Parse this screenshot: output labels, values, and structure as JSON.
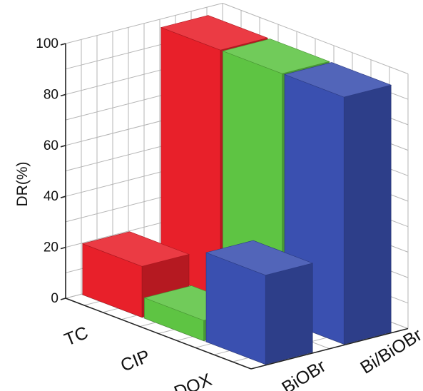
{
  "chart_data": {
    "type": "bar3d",
    "ylabel": "DR(%)",
    "ylim": [
      0,
      100
    ],
    "yticks": [
      "0",
      "20",
      "40",
      "60",
      "80",
      "100"
    ],
    "grid": true,
    "x_categories": [
      "TC",
      "CIP",
      "DOX"
    ],
    "z_categories": [
      "BiOBr",
      "Bi/BiOBr"
    ],
    "series": [
      {
        "name": "BiOBr",
        "values": [
          20,
          8,
          35
        ]
      },
      {
        "name": "Bi/BiOBr",
        "values": [
          97,
          97,
          97
        ]
      }
    ],
    "colors": {
      "TC": "#e8202a",
      "CIP": "#5ec443",
      "DOX": "#3a50b0"
    }
  }
}
